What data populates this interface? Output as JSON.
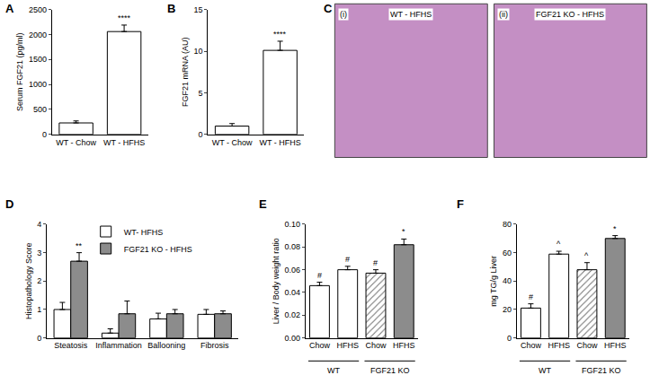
{
  "chart_data": [
    {
      "panel": "A",
      "type": "bar",
      "categories": [
        "WT - Chow",
        "WT - HFHS"
      ],
      "values": [
        230,
        2060
      ],
      "errors": [
        40,
        130
      ],
      "colors": [
        "#ffffff",
        "#ffffff"
      ],
      "ylabel": "Serum FGF21 (pg/ml)",
      "ylim": [
        0,
        2500
      ],
      "yticks": [
        0,
        500,
        1000,
        1500,
        2000,
        2500
      ],
      "annotations": [
        null,
        "****"
      ]
    },
    {
      "panel": "B",
      "type": "bar",
      "categories": [
        "WT - Chow",
        "WT - HFHS"
      ],
      "values": [
        1.0,
        10.1
      ],
      "errors": [
        0.3,
        1.1
      ],
      "colors": [
        "#ffffff",
        "#ffffff"
      ],
      "ylabel": "FGF21 mRNA (AU)",
      "ylim": [
        0,
        15
      ],
      "yticks": [
        0,
        5,
        10,
        15
      ],
      "annotations": [
        null,
        "****"
      ]
    },
    {
      "panel": "C",
      "type": "image",
      "images": [
        {
          "tag": "(i)",
          "title": "WT - HFHS"
        },
        {
          "tag": "(ii)",
          "title": "FGF21 KO - HFHS"
        }
      ]
    },
    {
      "panel": "D",
      "type": "bar",
      "categories": [
        "Steatosis",
        "Inflammation",
        "Ballooning",
        "Fibrosis"
      ],
      "series": [
        {
          "name": "WT- HFHS",
          "color": "#ffffff",
          "values": [
            1.0,
            0.17,
            0.67,
            0.83
          ],
          "errors": [
            0.25,
            0.15,
            0.2,
            0.17
          ],
          "annotations": [
            null,
            null,
            null,
            null
          ]
        },
        {
          "name": "FGF21 KO - HFHS",
          "color": "#8c8c8c",
          "values": [
            2.7,
            0.85,
            0.85,
            0.85
          ],
          "errors": [
            0.3,
            0.45,
            0.15,
            0.1
          ],
          "annotations": [
            "**",
            null,
            null,
            null
          ]
        }
      ],
      "legend": "top",
      "ylabel": "Histopathology Score",
      "ylim": [
        0,
        4
      ],
      "yticks": [
        0,
        1,
        2,
        3,
        4
      ]
    },
    {
      "panel": "E",
      "type": "bar",
      "categories": [
        "Chow",
        "HFHS",
        "Chow",
        "HFHS"
      ],
      "group_labels": [
        "WT",
        "FGF21 KO"
      ],
      "values": [
        0.046,
        0.06,
        0.057,
        0.082
      ],
      "errors": [
        0.003,
        0.003,
        0.003,
        0.005
      ],
      "colors": [
        "#ffffff",
        "#ffffff",
        "#6e6e6e",
        "#8c8c8c"
      ],
      "ylabel": "Liver / Body weight ratio",
      "ylim": [
        0,
        0.1
      ],
      "yticks": [
        {
          "value": 0,
          "label": "0.00"
        },
        {
          "value": 0.02,
          "label": "0.02"
        },
        {
          "value": 0.04,
          "label": "0.04"
        },
        {
          "value": 0.06,
          "label": "0.06"
        },
        {
          "value": 0.08,
          "label": "0.08"
        },
        {
          "value": 0.1,
          "label": "0.10"
        }
      ],
      "annotations": [
        "#",
        "#",
        "#",
        "*"
      ]
    },
    {
      "panel": "F",
      "type": "bar",
      "categories": [
        "Chow",
        "HFHS",
        "Chow",
        "HFHS"
      ],
      "group_labels": [
        "WT",
        "FGF21 KO"
      ],
      "values": [
        21,
        59,
        48,
        70
      ],
      "errors": [
        3,
        2,
        5,
        2
      ],
      "colors": [
        "#ffffff",
        "#ffffff",
        "#6e6e6e",
        "#8c8c8c"
      ],
      "ylabel": "mg TG/g Liver",
      "ylim": [
        0,
        80
      ],
      "yticks": [
        0,
        20,
        40,
        60,
        80
      ],
      "annotations": [
        "#",
        "^",
        "^",
        "*"
      ]
    }
  ]
}
